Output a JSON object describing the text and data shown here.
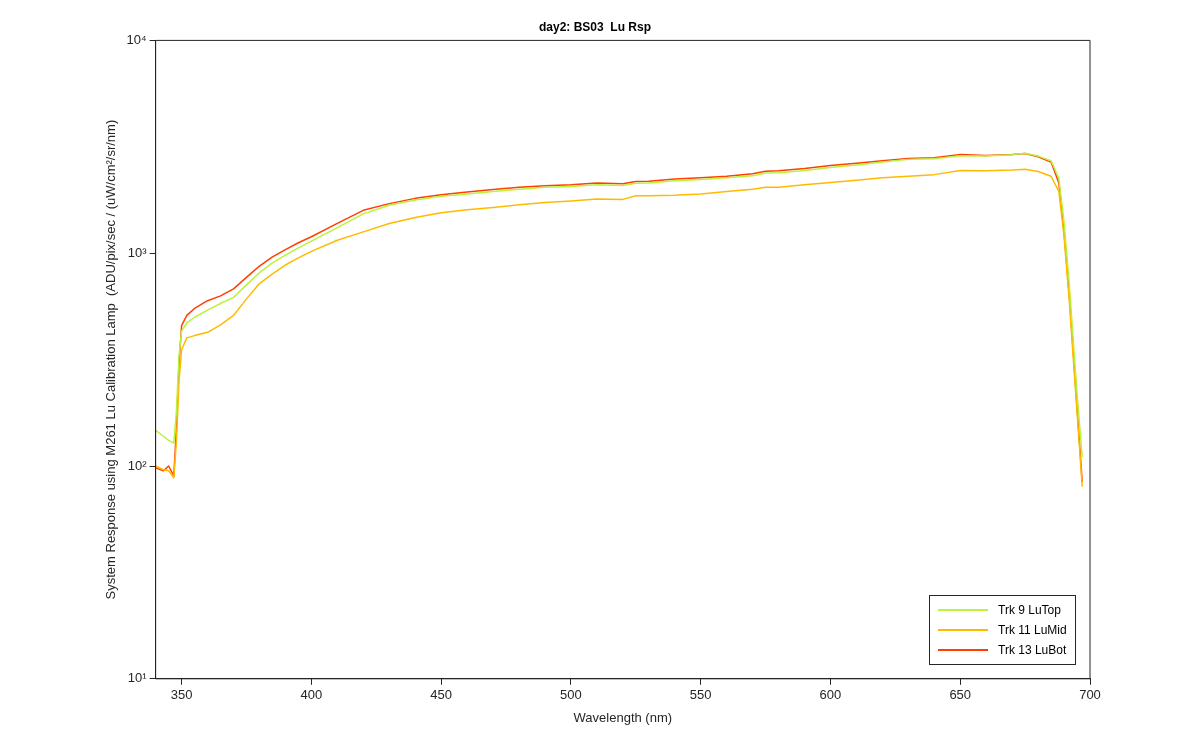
{
  "chart_data": {
    "type": "line",
    "title": "day2: BS03  Lu Rsp",
    "xlabel": "Wavelength (nm)",
    "ylabel": "System Response using M261 Lu Calibration Lamp  (ADU/pix/sec / (uW/cm²/sr/nm)",
    "x": [
      340,
      343,
      345,
      347,
      348,
      349,
      350,
      352,
      355,
      360,
      365,
      370,
      375,
      380,
      385,
      390,
      395,
      400,
      410,
      420,
      430,
      440,
      450,
      460,
      470,
      480,
      490,
      500,
      510,
      520,
      525,
      530,
      540,
      550,
      560,
      570,
      575,
      580,
      590,
      600,
      610,
      620,
      630,
      640,
      650,
      660,
      670,
      675,
      680,
      685,
      688,
      690,
      692,
      695,
      697
    ],
    "series": [
      {
        "name": "Trk 9 LuTop",
        "color": "#bbf23c",
        "values": [
          147,
          138,
          132,
          128,
          180,
          330,
          430,
          470,
          500,
          540,
          580,
          620,
          710,
          810,
          900,
          980,
          1060,
          1140,
          1320,
          1530,
          1680,
          1780,
          1850,
          1900,
          1950,
          2000,
          2040,
          2060,
          2100,
          2080,
          2130,
          2140,
          2190,
          2220,
          2260,
          2310,
          2380,
          2390,
          2450,
          2530,
          2600,
          2680,
          2760,
          2780,
          2870,
          2860,
          2900,
          2950,
          2860,
          2720,
          2250,
          1400,
          720,
          220,
          110
        ]
      },
      {
        "name": "Trk 11 LuMid",
        "color": "#ffba00",
        "values": [
          100,
          96,
          95,
          88,
          130,
          250,
          352,
          400,
          410,
          425,
          460,
          510,
          610,
          720,
          800,
          880,
          950,
          1020,
          1150,
          1260,
          1380,
          1470,
          1550,
          1600,
          1640,
          1690,
          1730,
          1760,
          1800,
          1790,
          1860,
          1860,
          1870,
          1900,
          1950,
          2000,
          2040,
          2040,
          2100,
          2150,
          2200,
          2260,
          2300,
          2340,
          2450,
          2440,
          2460,
          2480,
          2420,
          2300,
          1950,
          1200,
          600,
          180,
          80
        ]
      },
      {
        "name": "Trk 13 LuBot",
        "color": "#ff4000",
        "values": [
          98,
          95,
          100,
          90,
          150,
          300,
          457,
          510,
          550,
          598,
          630,
          680,
          770,
          870,
          960,
          1040,
          1120,
          1195,
          1380,
          1590,
          1710,
          1810,
          1880,
          1940,
          1990,
          2040,
          2075,
          2100,
          2140,
          2120,
          2170,
          2180,
          2230,
          2260,
          2300,
          2360,
          2430,
          2440,
          2500,
          2580,
          2650,
          2720,
          2790,
          2810,
          2910,
          2880,
          2910,
          2940,
          2840,
          2680,
          2140,
          1260,
          640,
          190,
          84
        ]
      }
    ],
    "log": "y",
    "xlim": [
      340,
      700
    ],
    "xticks": [
      350,
      400,
      450,
      500,
      550,
      600,
      650,
      700
    ],
    "ylim": [
      10,
      10000
    ],
    "yticks": [
      {
        "value": 10,
        "label": "10¹"
      },
      {
        "value": 100,
        "label": "10²"
      },
      {
        "value": 1000,
        "label": "10³"
      },
      {
        "value": 10000,
        "label": "10⁴"
      }
    ],
    "grid": false,
    "legend": "bottom right",
    "marker": "none",
    "line_style": "solid"
  }
}
